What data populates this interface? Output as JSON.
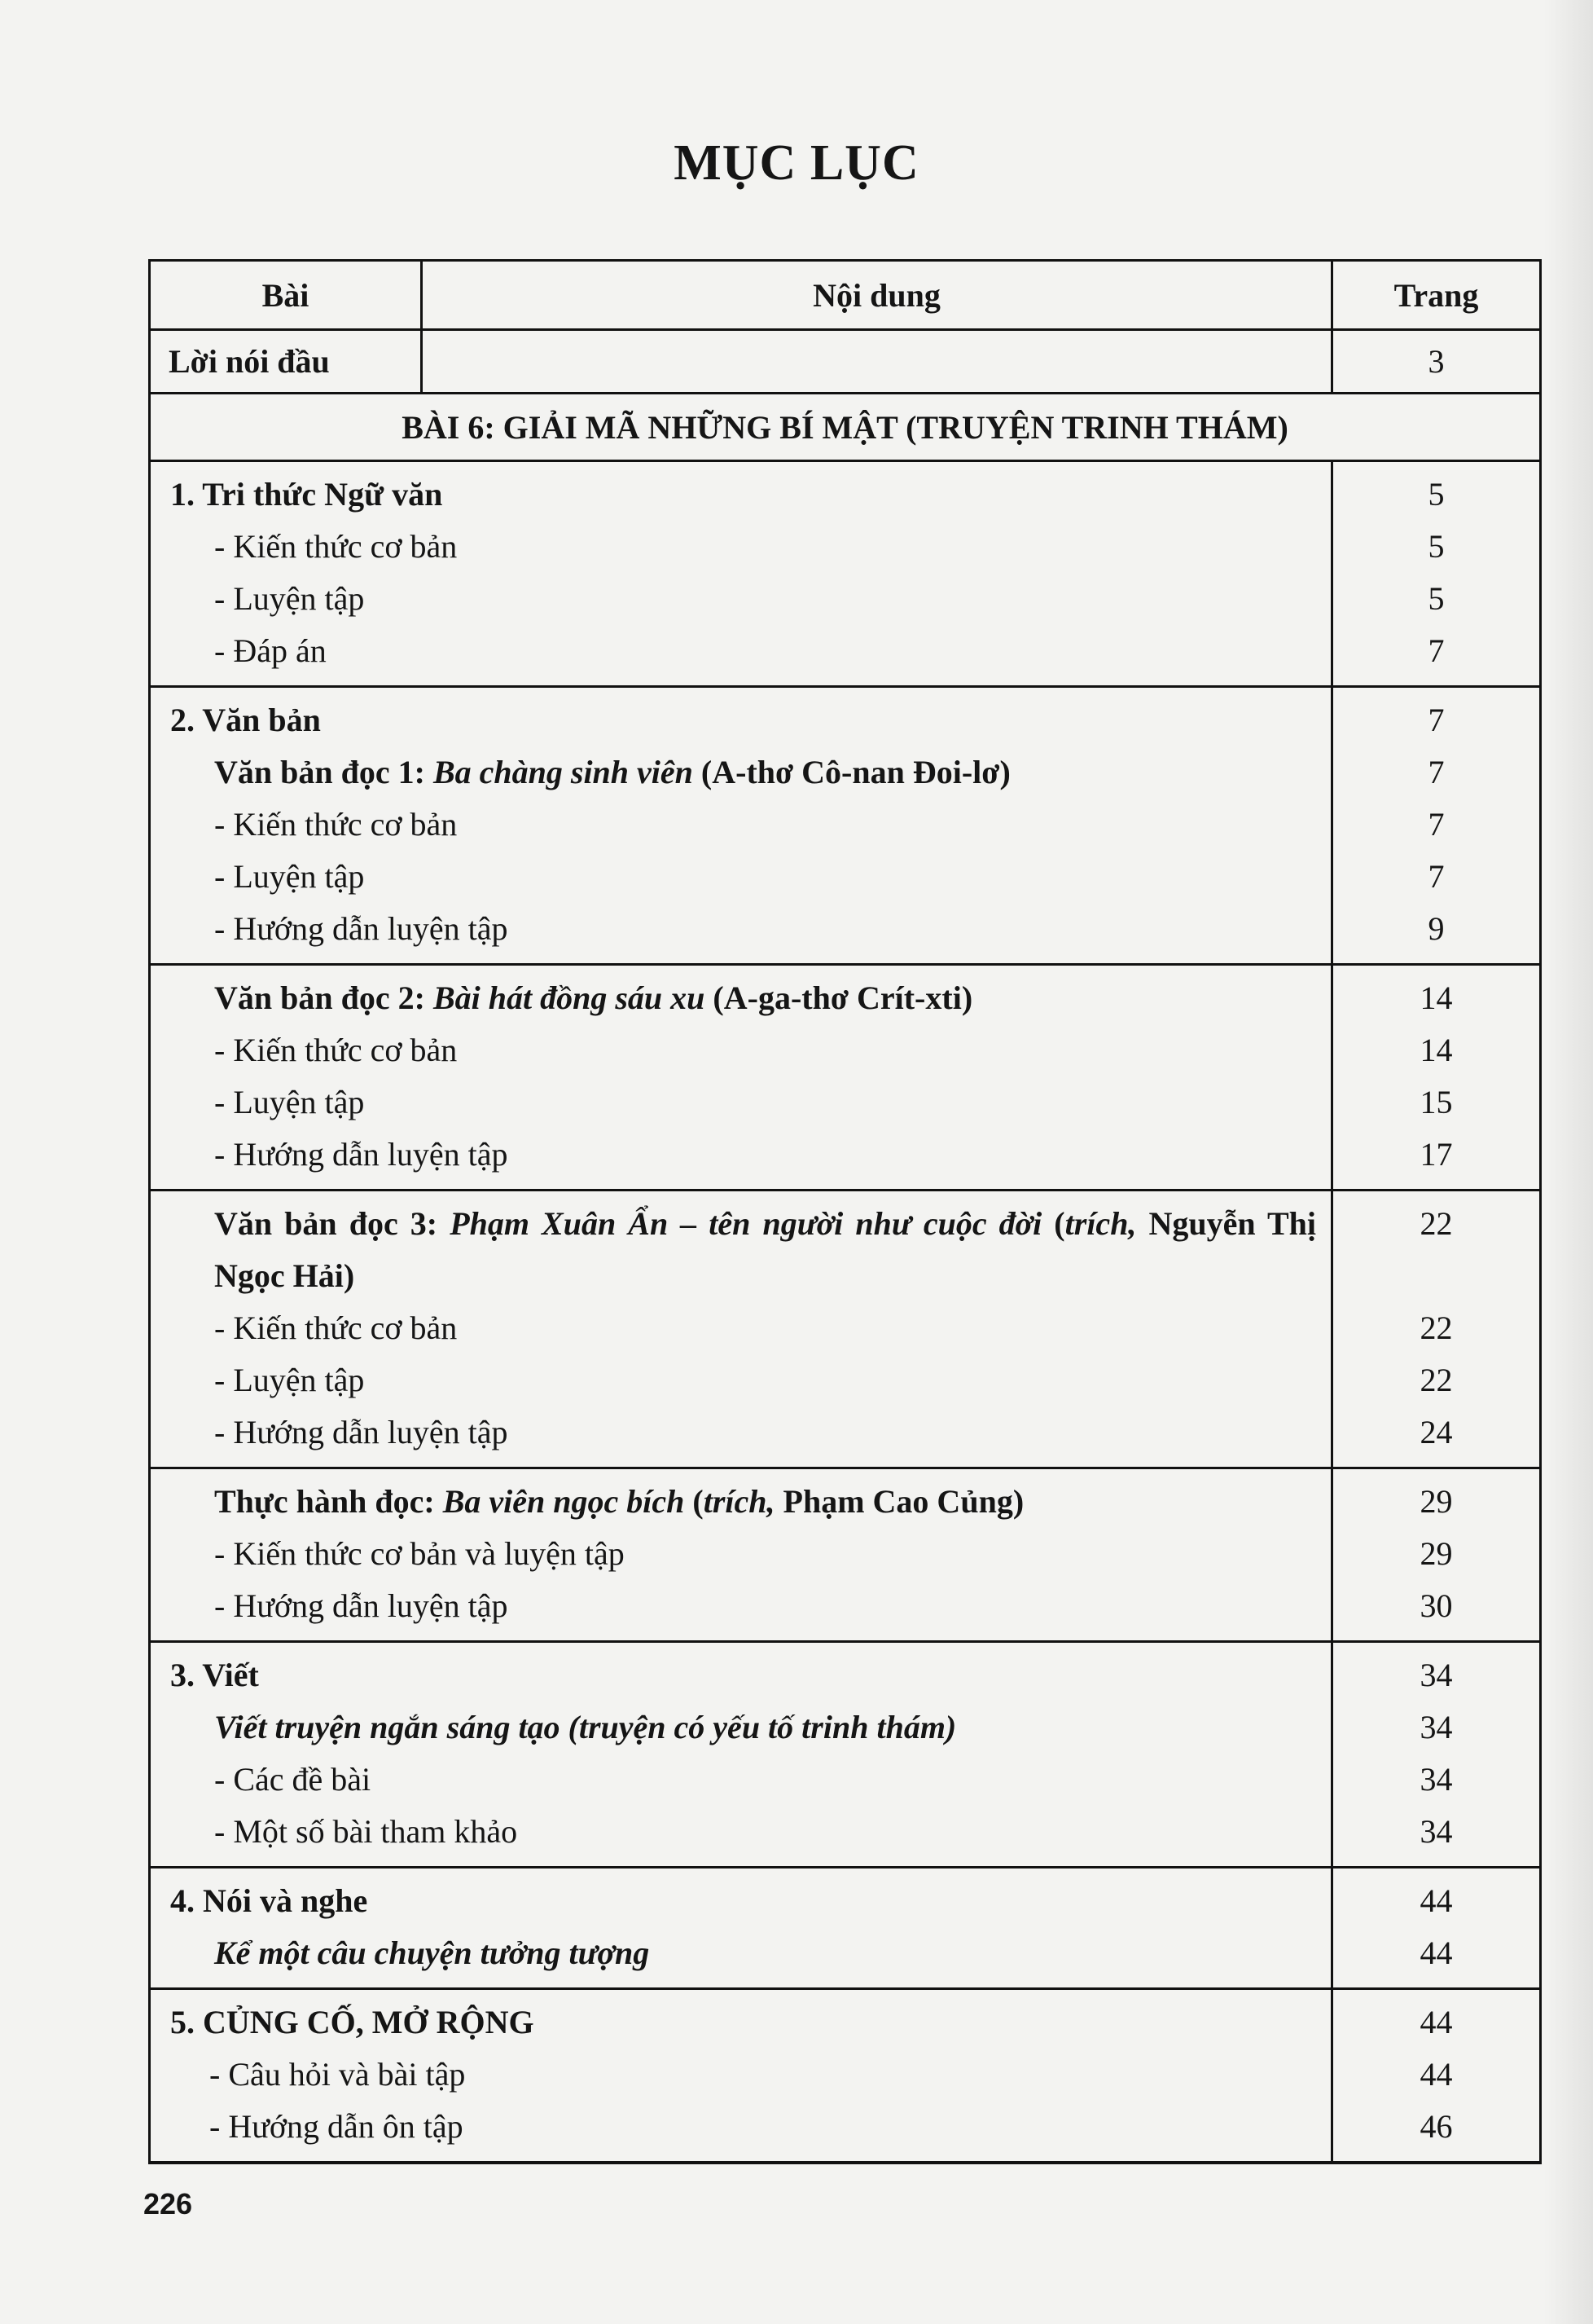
{
  "title": "MỤC LỤC",
  "header": {
    "col1": "Bài",
    "col2": "Nội dung",
    "col3": "Trang"
  },
  "intro": {
    "label": "Lời nói đầu",
    "page": "3"
  },
  "unit_title": "BÀI 6: GIẢI MÃ NHỮNG BÍ MẬT (TRUYỆN TRINH THÁM)",
  "blocks": [
    {
      "lines": [
        {
          "indent": 0,
          "segs": [
            {
              "t": "1. Tri thức Ngữ văn",
              "s": "b"
            }
          ],
          "page": "5"
        },
        {
          "indent": 1,
          "segs": [
            {
              "t": "- Kiến thức cơ bản",
              "s": ""
            }
          ],
          "page": "5"
        },
        {
          "indent": 1,
          "segs": [
            {
              "t": "- Luyện tập",
              "s": ""
            }
          ],
          "page": "5"
        },
        {
          "indent": 1,
          "segs": [
            {
              "t": "- Đáp án",
              "s": ""
            }
          ],
          "page": "7"
        }
      ]
    },
    {
      "lines": [
        {
          "indent": 0,
          "segs": [
            {
              "t": "2. Văn bản",
              "s": "b"
            }
          ],
          "page": "7"
        },
        {
          "indent": 1,
          "segs": [
            {
              "t": "Văn bản đọc 1: ",
              "s": "b"
            },
            {
              "t": "Ba chàng sinh viên",
              "s": "b i"
            },
            {
              "t": " (A-thơ Cô-nan Đoi-lơ)",
              "s": "b"
            }
          ],
          "page": "7"
        },
        {
          "indent": 1,
          "segs": [
            {
              "t": "- Kiến thức cơ bản",
              "s": ""
            }
          ],
          "page": "7"
        },
        {
          "indent": 1,
          "segs": [
            {
              "t": "- Luyện tập",
              "s": ""
            }
          ],
          "page": "7"
        },
        {
          "indent": 1,
          "segs": [
            {
              "t": "- Hướng dẫn luyện tập",
              "s": ""
            }
          ],
          "page": "9"
        }
      ]
    },
    {
      "lines": [
        {
          "indent": 1,
          "segs": [
            {
              "t": "Văn bản đọc 2: ",
              "s": "b"
            },
            {
              "t": "Bài hát đồng sáu xu",
              "s": "b i"
            },
            {
              "t": " (A-ga-thơ Crít-xti)",
              "s": "b"
            }
          ],
          "page": "14"
        },
        {
          "indent": 1,
          "segs": [
            {
              "t": "- Kiến thức cơ bản",
              "s": ""
            }
          ],
          "page": "14"
        },
        {
          "indent": 1,
          "segs": [
            {
              "t": "- Luyện tập",
              "s": ""
            }
          ],
          "page": "15"
        },
        {
          "indent": 1,
          "segs": [
            {
              "t": "- Hướng dẫn luyện tập",
              "s": ""
            }
          ],
          "page": "17"
        }
      ]
    },
    {
      "lines": [
        {
          "indent": 1,
          "wrap": true,
          "segs": [
            {
              "t": "Văn bản đọc 3: ",
              "s": "b"
            },
            {
              "t": "Phạm Xuân Ẩn – tên người như cuộc đời",
              "s": "b i"
            },
            {
              "t": " (",
              "s": "b"
            },
            {
              "t": "trích,",
              "s": "b i"
            },
            {
              "t": " Nguyễn Thị Ngọc Hải)",
              "s": "b"
            }
          ],
          "page": "22"
        },
        {
          "indent": 1,
          "segs": [
            {
              "t": "- Kiến thức cơ bản",
              "s": ""
            }
          ],
          "page": "22"
        },
        {
          "indent": 1,
          "segs": [
            {
              "t": "- Luyện tập",
              "s": ""
            }
          ],
          "page": "22"
        },
        {
          "indent": 1,
          "segs": [
            {
              "t": "- Hướng dẫn luyện tập",
              "s": ""
            }
          ],
          "page": "24"
        }
      ]
    },
    {
      "lines": [
        {
          "indent": 1,
          "segs": [
            {
              "t": "Thực hành đọc: ",
              "s": "b"
            },
            {
              "t": "Ba viên ngọc bích",
              "s": "b i"
            },
            {
              "t": " (",
              "s": "b"
            },
            {
              "t": "trích,",
              "s": "b i"
            },
            {
              "t": " Phạm Cao Củng)",
              "s": "b"
            }
          ],
          "page": "29"
        },
        {
          "indent": 1,
          "segs": [
            {
              "t": "- Kiến thức cơ bản và luyện tập",
              "s": ""
            }
          ],
          "page": "29"
        },
        {
          "indent": 1,
          "segs": [
            {
              "t": "- Hướng dẫn luyện tập",
              "s": ""
            }
          ],
          "page": "30"
        }
      ]
    },
    {
      "lines": [
        {
          "indent": 0,
          "segs": [
            {
              "t": "3. Viết",
              "s": "b"
            }
          ],
          "page": "34"
        },
        {
          "indent": 1,
          "segs": [
            {
              "t": "Viết truyện ngắn sáng tạo (truyện có yếu tố trinh thám)",
              "s": "b i"
            }
          ],
          "page": "34"
        },
        {
          "indent": 1,
          "segs": [
            {
              "t": "- Các đề bài",
              "s": ""
            }
          ],
          "page": "34"
        },
        {
          "indent": 1,
          "segs": [
            {
              "t": "- Một số bài tham khảo",
              "s": ""
            }
          ],
          "page": "34"
        }
      ]
    },
    {
      "lines": [
        {
          "indent": 0,
          "segs": [
            {
              "t": "4. Nói và nghe",
              "s": "b"
            }
          ],
          "page": "44"
        },
        {
          "indent": 1,
          "segs": [
            {
              "t": "Kể một câu chuyện tưởng tượng",
              "s": "b i"
            }
          ],
          "page": "44"
        }
      ]
    },
    {
      "lines": [
        {
          "indent": 0,
          "segs": [
            {
              "t": "5. CỦNG CỐ, MỞ RỘNG",
              "s": "b"
            }
          ],
          "page": "44"
        },
        {
          "indent": 2,
          "segs": [
            {
              "t": "- Câu hỏi và bài tập",
              "s": ""
            }
          ],
          "page": "44"
        },
        {
          "indent": 2,
          "segs": [
            {
              "t": "- Hướng dẫn ôn tập",
              "s": ""
            }
          ],
          "page": "46"
        }
      ]
    }
  ],
  "page_number": "226"
}
